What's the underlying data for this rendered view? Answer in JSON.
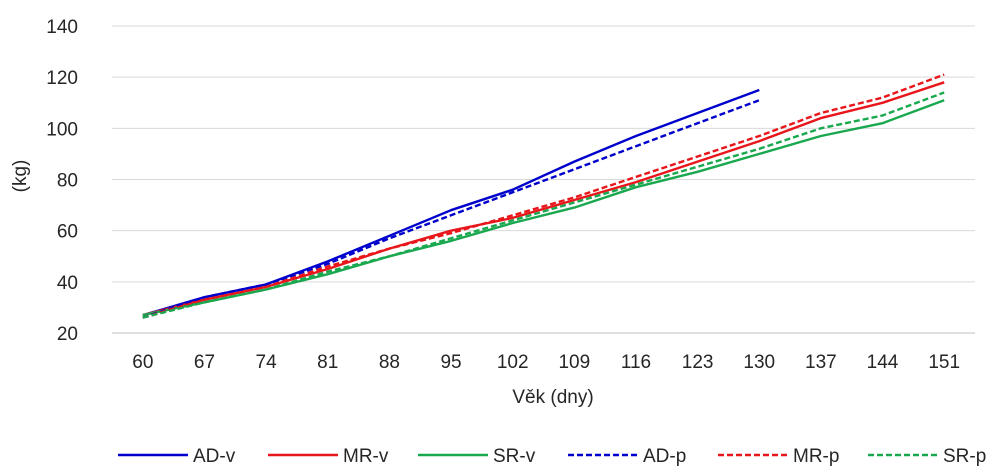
{
  "chart_data": {
    "type": "line",
    "title": "",
    "xlabel": "Věk (dny)",
    "ylabel": "(kg)",
    "ylim": [
      20,
      140
    ],
    "yticks": [
      20,
      40,
      60,
      80,
      100,
      120,
      140
    ],
    "categories": [
      "60",
      "67",
      "74",
      "81",
      "88",
      "95",
      "102",
      "109",
      "116",
      "123",
      "130",
      "137",
      "144",
      "151"
    ],
    "grid": "horizontal",
    "legend_position": "bottom",
    "series": [
      {
        "name": "AD-v",
        "color": "#0000cc",
        "dash": "solid",
        "values": [
          27,
          34,
          39,
          48,
          58,
          68,
          76,
          87,
          97,
          106,
          115,
          null,
          null,
          null
        ]
      },
      {
        "name": "MR-v",
        "color": "#e8161b",
        "dash": "solid",
        "values": [
          27,
          33,
          38,
          45,
          53,
          60,
          65,
          72,
          79,
          87,
          95,
          104,
          110,
          118
        ]
      },
      {
        "name": "SR-v",
        "color": "#1aa84f",
        "dash": "solid",
        "values": [
          27,
          32,
          37,
          43,
          50,
          56,
          63,
          69,
          77,
          83,
          90,
          97,
          102,
          111
        ]
      },
      {
        "name": "AD-p",
        "color": "#0000cc",
        "dash": "dashed",
        "values": [
          26,
          34,
          39,
          47,
          57,
          66,
          75,
          84,
          93,
          102,
          111,
          null,
          null,
          null
        ]
      },
      {
        "name": "MR-p",
        "color": "#e8161b",
        "dash": "dashed",
        "values": [
          26,
          33,
          38,
          46,
          53,
          59,
          66,
          73,
          81,
          89,
          97,
          106,
          112,
          121
        ]
      },
      {
        "name": "SR-p",
        "color": "#1aa84f",
        "dash": "dashed",
        "values": [
          26,
          32,
          37,
          44,
          50,
          57,
          64,
          71,
          78,
          85,
          92,
          100,
          105,
          114
        ]
      }
    ]
  }
}
